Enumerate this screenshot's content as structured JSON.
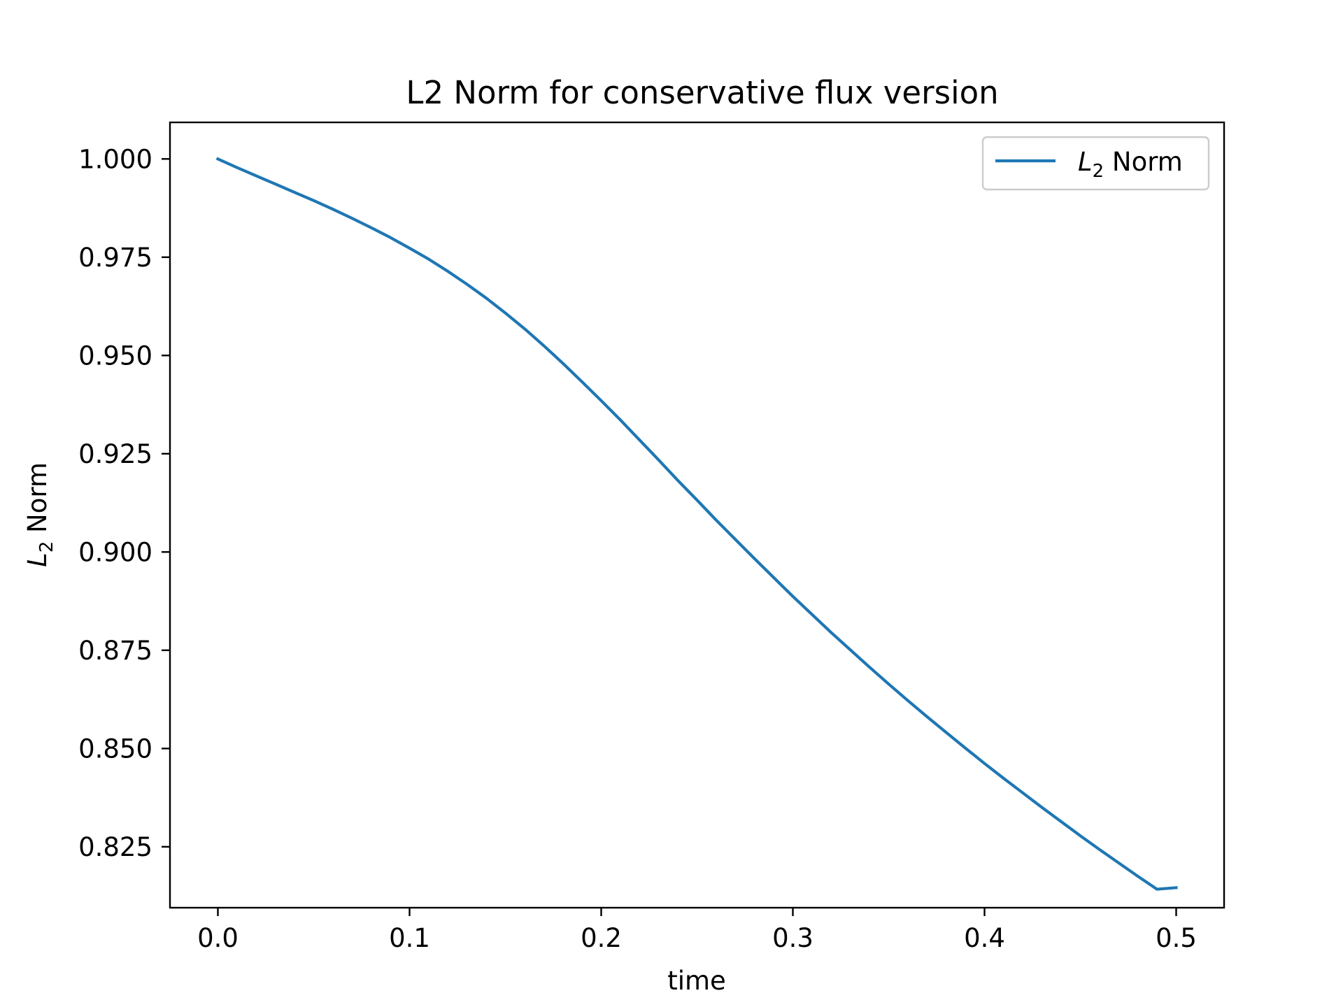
{
  "chart_data": {
    "type": "line",
    "title": "L2 Norm for conservative flux version",
    "xlabel": "time",
    "ylabel": {
      "base": "L",
      "sub": "2",
      "rest": " Norm"
    },
    "xlim": [
      -0.025,
      0.525
    ],
    "ylim": [
      0.8095,
      1.0093
    ],
    "xticks": [
      0.0,
      0.1,
      0.2,
      0.3,
      0.4,
      0.5
    ],
    "xtick_labels": [
      "0.0",
      "0.1",
      "0.2",
      "0.3",
      "0.4",
      "0.5"
    ],
    "yticks": [
      0.825,
      0.85,
      0.875,
      0.9,
      0.925,
      0.95,
      0.975,
      1.0
    ],
    "ytick_labels": [
      "0.825",
      "0.850",
      "0.875",
      "0.900",
      "0.925",
      "0.950",
      "0.975",
      "1.000"
    ],
    "grid": false,
    "legend_position": "top-right",
    "colors": {
      "series": "#1f77b4",
      "axes": "#000000",
      "legend_border": "#cccccc"
    },
    "series": [
      {
        "name": {
          "base": "L",
          "sub": "2",
          "rest": " Norm"
        },
        "x": [
          0.0,
          0.01,
          0.02,
          0.03,
          0.04,
          0.05,
          0.06,
          0.07,
          0.08,
          0.09,
          0.1,
          0.11,
          0.12,
          0.13,
          0.14,
          0.15,
          0.16,
          0.17,
          0.18,
          0.19,
          0.2,
          0.21,
          0.22,
          0.23,
          0.24,
          0.25,
          0.26,
          0.27,
          0.28,
          0.29,
          0.3,
          0.31,
          0.32,
          0.33,
          0.34,
          0.35,
          0.36,
          0.37,
          0.38,
          0.39,
          0.4,
          0.41,
          0.42,
          0.43,
          0.44,
          0.45,
          0.46,
          0.47,
          0.48,
          0.49,
          0.5
        ],
        "y": [
          1.0,
          0.9978,
          0.9957,
          0.9936,
          0.9915,
          0.9894,
          0.9872,
          0.9849,
          0.9825,
          0.98,
          0.9773,
          0.9745,
          0.9714,
          0.9681,
          0.9646,
          0.9608,
          0.9568,
          0.9525,
          0.948,
          0.9433,
          0.9385,
          0.9336,
          0.9285,
          0.9234,
          0.9182,
          0.9132,
          0.9081,
          0.9032,
          0.8983,
          0.8935,
          0.8887,
          0.8841,
          0.8795,
          0.8751,
          0.8707,
          0.8664,
          0.8622,
          0.8581,
          0.8541,
          0.8501,
          0.8462,
          0.8424,
          0.8387,
          0.835,
          0.8314,
          0.8278,
          0.8243,
          0.8209,
          0.8175,
          0.8142,
          0.8146
        ]
      }
    ]
  }
}
